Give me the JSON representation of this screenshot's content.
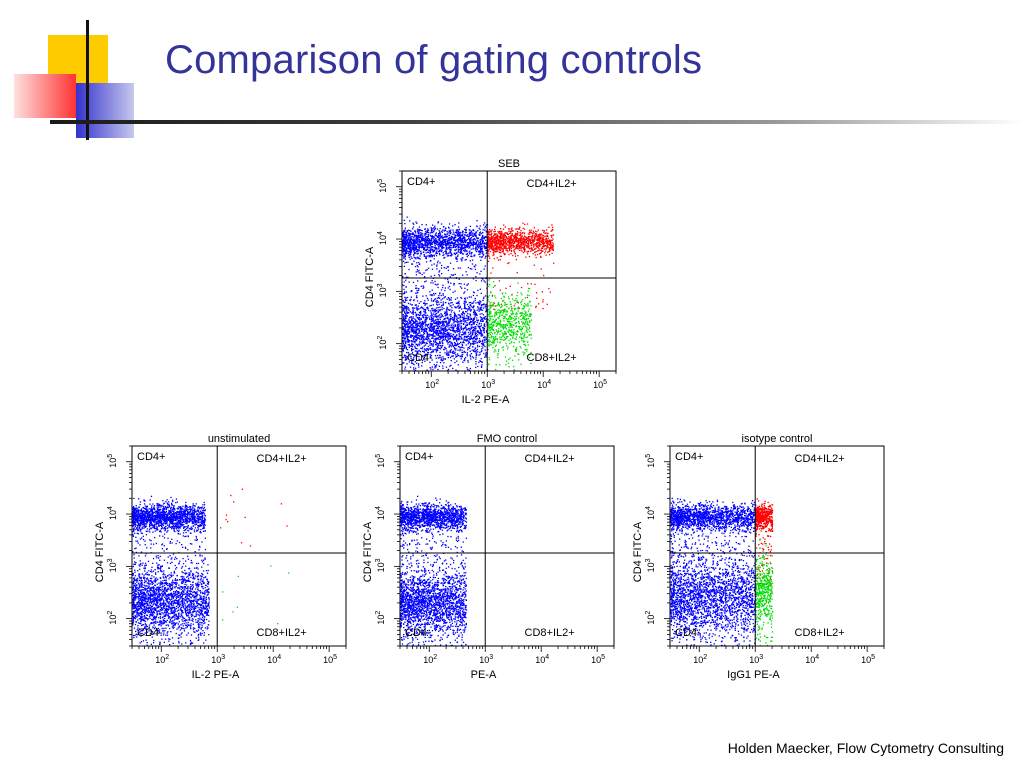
{
  "slide": {
    "title": "Comparison of gating controls",
    "footer": "Holden Maecker, Flow Cytometry Consulting"
  },
  "colors": {
    "title": "#333399",
    "double_positive": "#ff0000",
    "cd8_il2": "#00dd00",
    "negative": "#0000ff",
    "deco_yellow": "#ffcc00",
    "deco_red": "#ff3333",
    "deco_blue": "#3333cc"
  },
  "chart_data": [
    {
      "type": "scatter",
      "title": "SEB",
      "xlabel": "IL-2 PE-A",
      "ylabel": "CD4 FITC-A",
      "xscale": "log",
      "yscale": "log",
      "xlim": [
        30,
        200000
      ],
      "ylim": [
        30,
        200000
      ],
      "xticks": [
        "10",
        "10",
        "10",
        "10"
      ],
      "xtick_exponents": [
        "2",
        "3",
        "4",
        "5"
      ],
      "yticks": [
        "10",
        "10",
        "10",
        "10"
      ],
      "ytick_exponents": [
        "2",
        "3",
        "4",
        "5"
      ],
      "gate": {
        "x": 1000,
        "y": 1800
      },
      "quadrants": {
        "upper_left": "CD4+",
        "upper_right": "CD4+IL2+",
        "lower_left": "CD4-",
        "lower_right": "CD8+IL2+"
      },
      "populations": [
        {
          "name": "CD4+IL2-",
          "color": "#0000ff",
          "count": 1700,
          "x_range": [
            30,
            1000
          ],
          "y_center": 9000,
          "y_spread": 0.14,
          "tail": 0.2
        },
        {
          "name": "CD4-IL2-",
          "color": "#0000ff",
          "count": 2100,
          "x_range": [
            30,
            1000
          ],
          "y_center": 200,
          "y_spread": 0.3,
          "tail": 0.15
        },
        {
          "name": "CD4+IL2+",
          "color": "#ff0000",
          "count": 1100,
          "x_range": [
            1000,
            15000
          ],
          "y_center": 9000,
          "y_spread": 0.12,
          "tail": 0.05
        },
        {
          "name": "CD8+IL2+",
          "color": "#00dd00",
          "count": 650,
          "x_range": [
            1000,
            6000
          ],
          "y_center": 250,
          "y_spread": 0.3,
          "tail": 0.05
        }
      ]
    },
    {
      "type": "scatter",
      "title": "unstimulated",
      "xlabel": "IL-2 PE-A",
      "ylabel": "CD4 FITC-A",
      "xscale": "log",
      "yscale": "log",
      "xlim": [
        30,
        200000
      ],
      "ylim": [
        30,
        200000
      ],
      "xticks": [
        "10",
        "10",
        "10",
        "10"
      ],
      "xtick_exponents": [
        "2",
        "3",
        "4",
        "5"
      ],
      "yticks": [
        "10",
        "10",
        "10",
        "10"
      ],
      "ytick_exponents": [
        "2",
        "3",
        "4",
        "5"
      ],
      "gate": {
        "x": 1000,
        "y": 1800
      },
      "quadrants": {
        "upper_left": "CD4+",
        "upper_right": "CD4+IL2+",
        "lower_left": "CD4-",
        "lower_right": "CD8+IL2+"
      },
      "populations": [
        {
          "name": "CD4+IL2-",
          "color": "#0000ff",
          "count": 1700,
          "x_range": [
            30,
            600
          ],
          "y_center": 9000,
          "y_spread": 0.12,
          "tail": 0.15
        },
        {
          "name": "CD4-IL2-",
          "color": "#0000ff",
          "count": 2100,
          "x_range": [
            30,
            700
          ],
          "y_center": 220,
          "y_spread": 0.3,
          "tail": 0.1
        },
        {
          "name": "CD4+IL2+",
          "color": "#ff0000",
          "count": 12,
          "x_range": [
            1000,
            20000
          ],
          "y_center": 9000,
          "y_spread": 0.3,
          "tail": 0
        },
        {
          "name": "CD8+IL2+",
          "color": "#00dd00",
          "count": 8,
          "x_range": [
            1000,
            20000
          ],
          "y_center": 300,
          "y_spread": 0.4,
          "tail": 0
        }
      ]
    },
    {
      "type": "scatter",
      "title": "FMO control",
      "xlabel": "PE-A",
      "ylabel": "CD4 FITC-A",
      "xscale": "log",
      "yscale": "log",
      "xlim": [
        30,
        200000
      ],
      "ylim": [
        30,
        200000
      ],
      "xticks": [
        "10",
        "10",
        "10",
        "10"
      ],
      "xtick_exponents": [
        "2",
        "3",
        "4",
        "5"
      ],
      "yticks": [
        "10",
        "10",
        "10",
        "10"
      ],
      "ytick_exponents": [
        "2",
        "3",
        "4",
        "5"
      ],
      "gate": {
        "x": 1000,
        "y": 1800
      },
      "quadrants": {
        "upper_left": "CD4+",
        "upper_right": "CD4+IL2+",
        "lower_left": "CD4-",
        "lower_right": "CD8+IL2+"
      },
      "populations": [
        {
          "name": "CD4+IL2-",
          "color": "#0000ff",
          "count": 1500,
          "x_range": [
            30,
            450
          ],
          "y_center": 9000,
          "y_spread": 0.12,
          "tail": 0.15
        },
        {
          "name": "CD4-IL2-",
          "color": "#0000ff",
          "count": 1900,
          "x_range": [
            30,
            450
          ],
          "y_center": 200,
          "y_spread": 0.3,
          "tail": 0.1
        }
      ]
    },
    {
      "type": "scatter",
      "title": "isotype control",
      "xlabel": "IgG1 PE-A",
      "ylabel": "CD4 FITC-A",
      "xscale": "log",
      "yscale": "log",
      "xlim": [
        30,
        200000
      ],
      "ylim": [
        30,
        200000
      ],
      "xticks": [
        "10",
        "10",
        "10",
        "10"
      ],
      "xtick_exponents": [
        "2",
        "3",
        "4",
        "5"
      ],
      "yticks": [
        "10",
        "10",
        "10",
        "10"
      ],
      "ytick_exponents": [
        "2",
        "3",
        "4",
        "5"
      ],
      "gate": {
        "x": 1000,
        "y": 1800
      },
      "quadrants": {
        "upper_left": "CD4+",
        "upper_right": "CD4+IL2+",
        "lower_left": "CD4-",
        "lower_right": "CD8+IL2+"
      },
      "populations": [
        {
          "name": "CD4+IL2-",
          "color": "#0000ff",
          "count": 1700,
          "x_range": [
            30,
            1000
          ],
          "y_center": 9000,
          "y_spread": 0.12,
          "tail": 0.2
        },
        {
          "name": "CD4-IL2-",
          "color": "#0000ff",
          "count": 2100,
          "x_range": [
            30,
            1000
          ],
          "y_center": 250,
          "y_spread": 0.35,
          "tail": 0.1
        },
        {
          "name": "CD4+IL2+",
          "color": "#ff0000",
          "count": 500,
          "x_range": [
            1000,
            2000
          ],
          "y_center": 9000,
          "y_spread": 0.12,
          "tail": 0.15
        },
        {
          "name": "CD8+IL2+",
          "color": "#00dd00",
          "count": 450,
          "x_range": [
            1000,
            2000
          ],
          "y_center": 350,
          "y_spread": 0.3,
          "tail": 0.15
        }
      ]
    }
  ]
}
